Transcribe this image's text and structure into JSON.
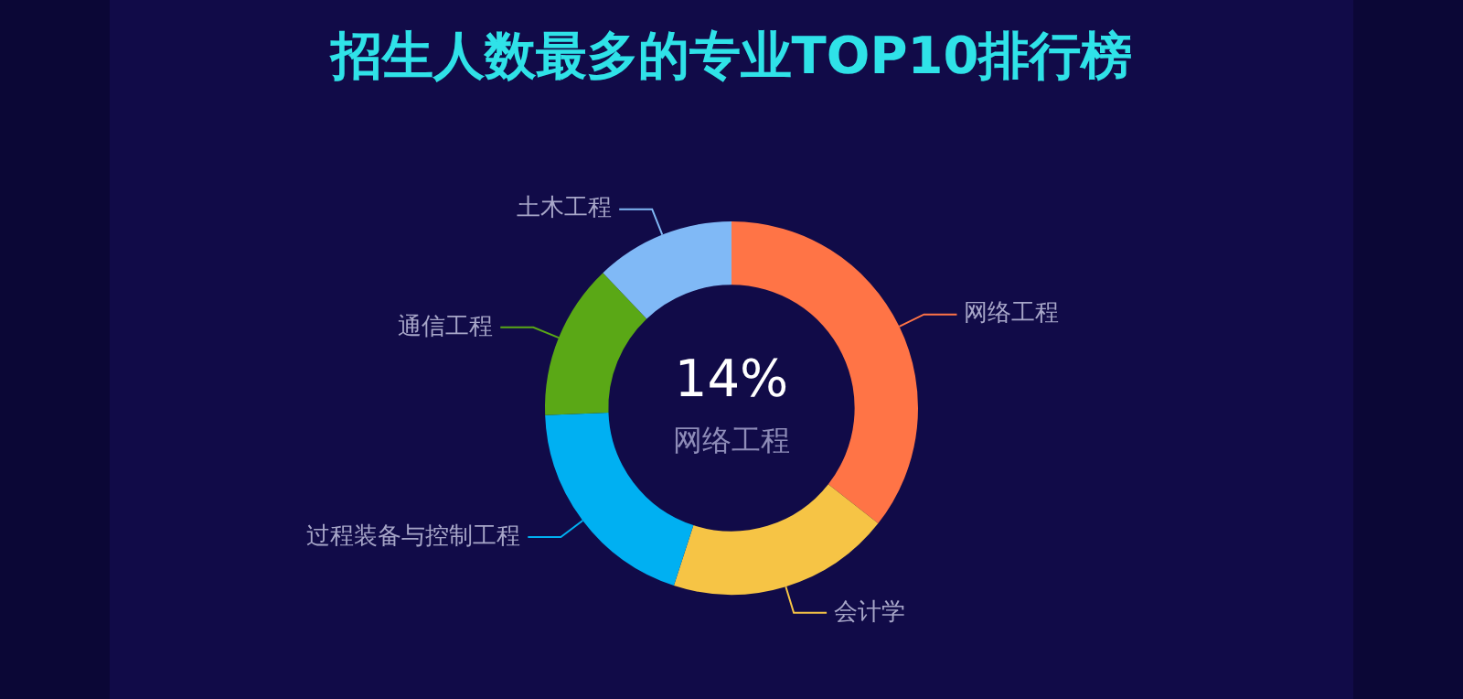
{
  "chart_data": {
    "type": "donut",
    "title": "招生人数最多的专业TOP10排行榜",
    "categories": [
      "网络工程",
      "会计学",
      "过程装备与控制工程",
      "通信工程",
      "土木工程"
    ],
    "values": [
      35.6,
      19.4,
      19.4,
      13.5,
      12.1
    ],
    "colors": [
      "#ff7446",
      "#f6c445",
      "#00b0f2",
      "#5aa816",
      "#80b9f6"
    ],
    "annotations": [
      "14%",
      "网络工程"
    ],
    "legend": false
  }
}
